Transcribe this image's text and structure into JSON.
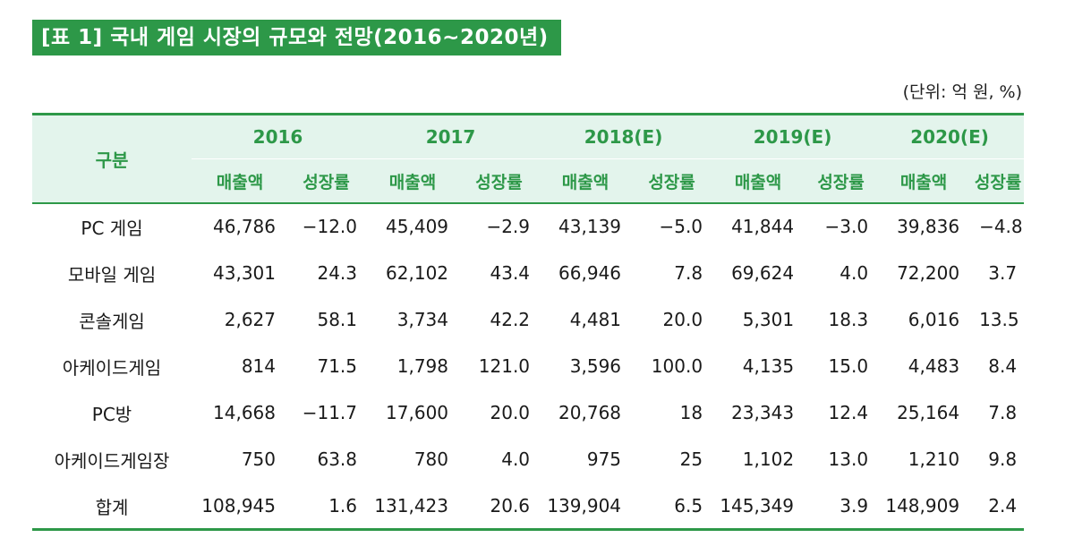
{
  "title": "[표 1] 국내 게임 시장의 규모와 전망(2016~2020년)",
  "unit_note": "(단위: 억 원, %)",
  "table": {
    "category_header": "구분",
    "years": [
      "2016",
      "2017",
      "2018(E)",
      "2019(E)",
      "2020(E)"
    ],
    "sub_headers": {
      "revenue": "매출액",
      "growth": "성장률"
    },
    "rows": [
      {
        "label": "PC 게임",
        "cells": [
          "46,786",
          "−12.0",
          "45,409",
          "−2.9",
          "43,139",
          "−5.0",
          "41,844",
          "−3.0",
          "39,836",
          "−4.8"
        ]
      },
      {
        "label": "모바일 게임",
        "cells": [
          "43,301",
          "24.3",
          "62,102",
          "43.4",
          "66,946",
          "7.8",
          "69,624",
          "4.0",
          "72,200",
          "3.7"
        ]
      },
      {
        "label": "콘솔게임",
        "cells": [
          "2,627",
          "58.1",
          "3,734",
          "42.2",
          "4,481",
          "20.0",
          "5,301",
          "18.3",
          "6,016",
          "13.5"
        ]
      },
      {
        "label": "아케이드게임",
        "cells": [
          "814",
          "71.5",
          "1,798",
          "121.0",
          "3,596",
          "100.0",
          "4,135",
          "15.0",
          "4,483",
          "8.4"
        ]
      },
      {
        "label": "PC방",
        "cells": [
          "14,668",
          "−11.7",
          "17,600",
          "20.0",
          "20,768",
          "18",
          "23,343",
          "12.4",
          "25,164",
          "7.8"
        ]
      },
      {
        "label": "아케이드게임장",
        "cells": [
          "750",
          "63.8",
          "780",
          "4.0",
          "975",
          "25",
          "1,102",
          "13.0",
          "1,210",
          "9.8"
        ]
      },
      {
        "label": "합계",
        "cells": [
          "108,945",
          "1.6",
          "131,423",
          "20.6",
          "139,904",
          "6.5",
          "145,349",
          "3.9",
          "148,909",
          "2.4"
        ]
      }
    ]
  },
  "colors": {
    "accent": "#2d9848",
    "header_bg": "#e3f4ec",
    "badge_text": "#ffffff"
  }
}
